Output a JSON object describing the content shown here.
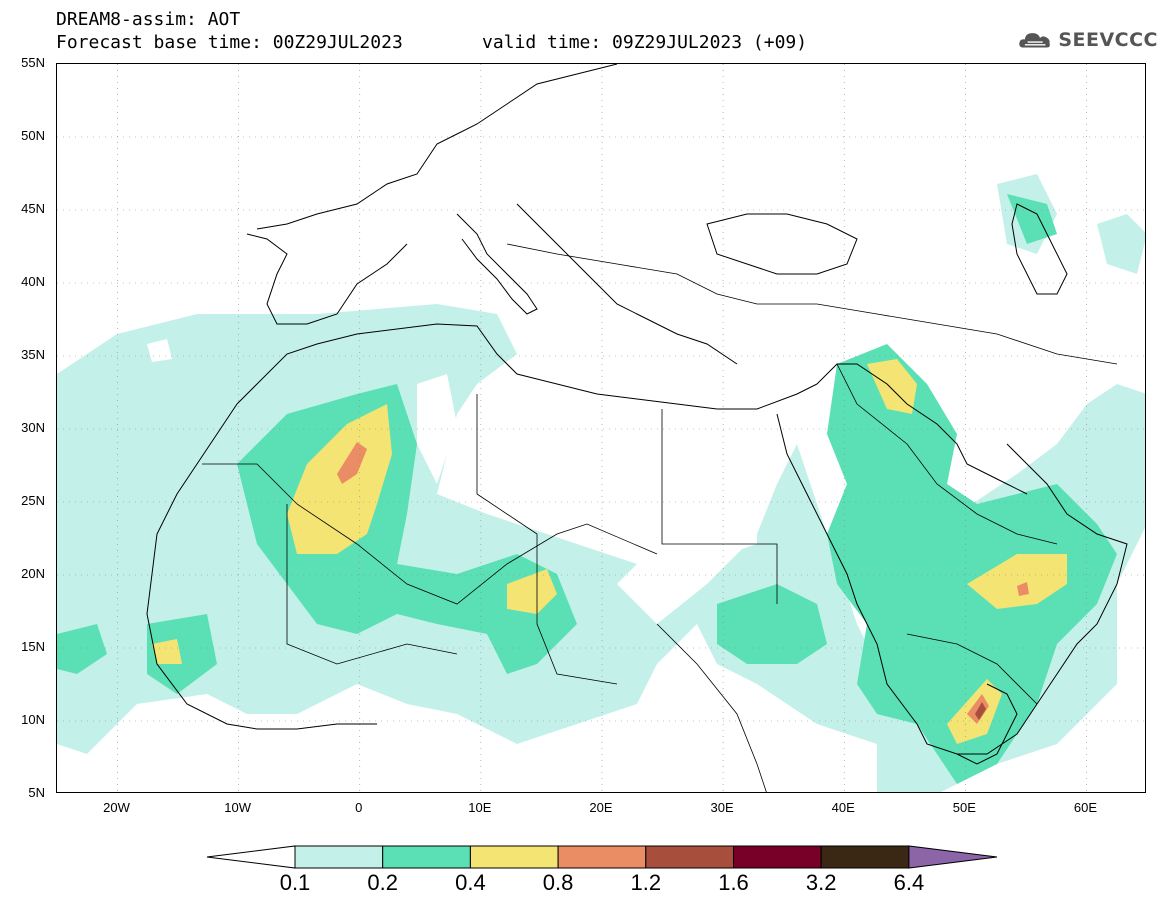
{
  "header": {
    "line1": "DREAM8-assim: AOT",
    "line2": "Forecast base time: 00Z29JUL2023",
    "line3": "valid time: 09Z29JUL2023 (+09)"
  },
  "logo": {
    "text": "SEEVCCC",
    "icon": "cloud-icon"
  },
  "map": {
    "lat_labels": [
      "55N",
      "50N",
      "45N",
      "40N",
      "35N",
      "30N",
      "25N",
      "20N",
      "15N",
      "10N",
      "5N"
    ],
    "lon_labels": [
      "20W",
      "10W",
      "0",
      "10E",
      "20E",
      "30E",
      "40E",
      "50E",
      "60E"
    ],
    "lat_range": [
      5,
      55
    ],
    "lon_range": [
      -25,
      65
    ],
    "grid": "dotted"
  },
  "colorbar": {
    "labels": [
      "0.1",
      "0.2",
      "0.4",
      "0.8",
      "1.2",
      "1.6",
      "3.2",
      "6.4"
    ],
    "colors": [
      "#c4f0ea",
      "#5ae0b4",
      "#f4e474",
      "#ea8c64",
      "#a84e3c",
      "#780028",
      "#3a2814"
    ],
    "under_color": "#ffffff",
    "over_color": "#8c64a8"
  }
}
